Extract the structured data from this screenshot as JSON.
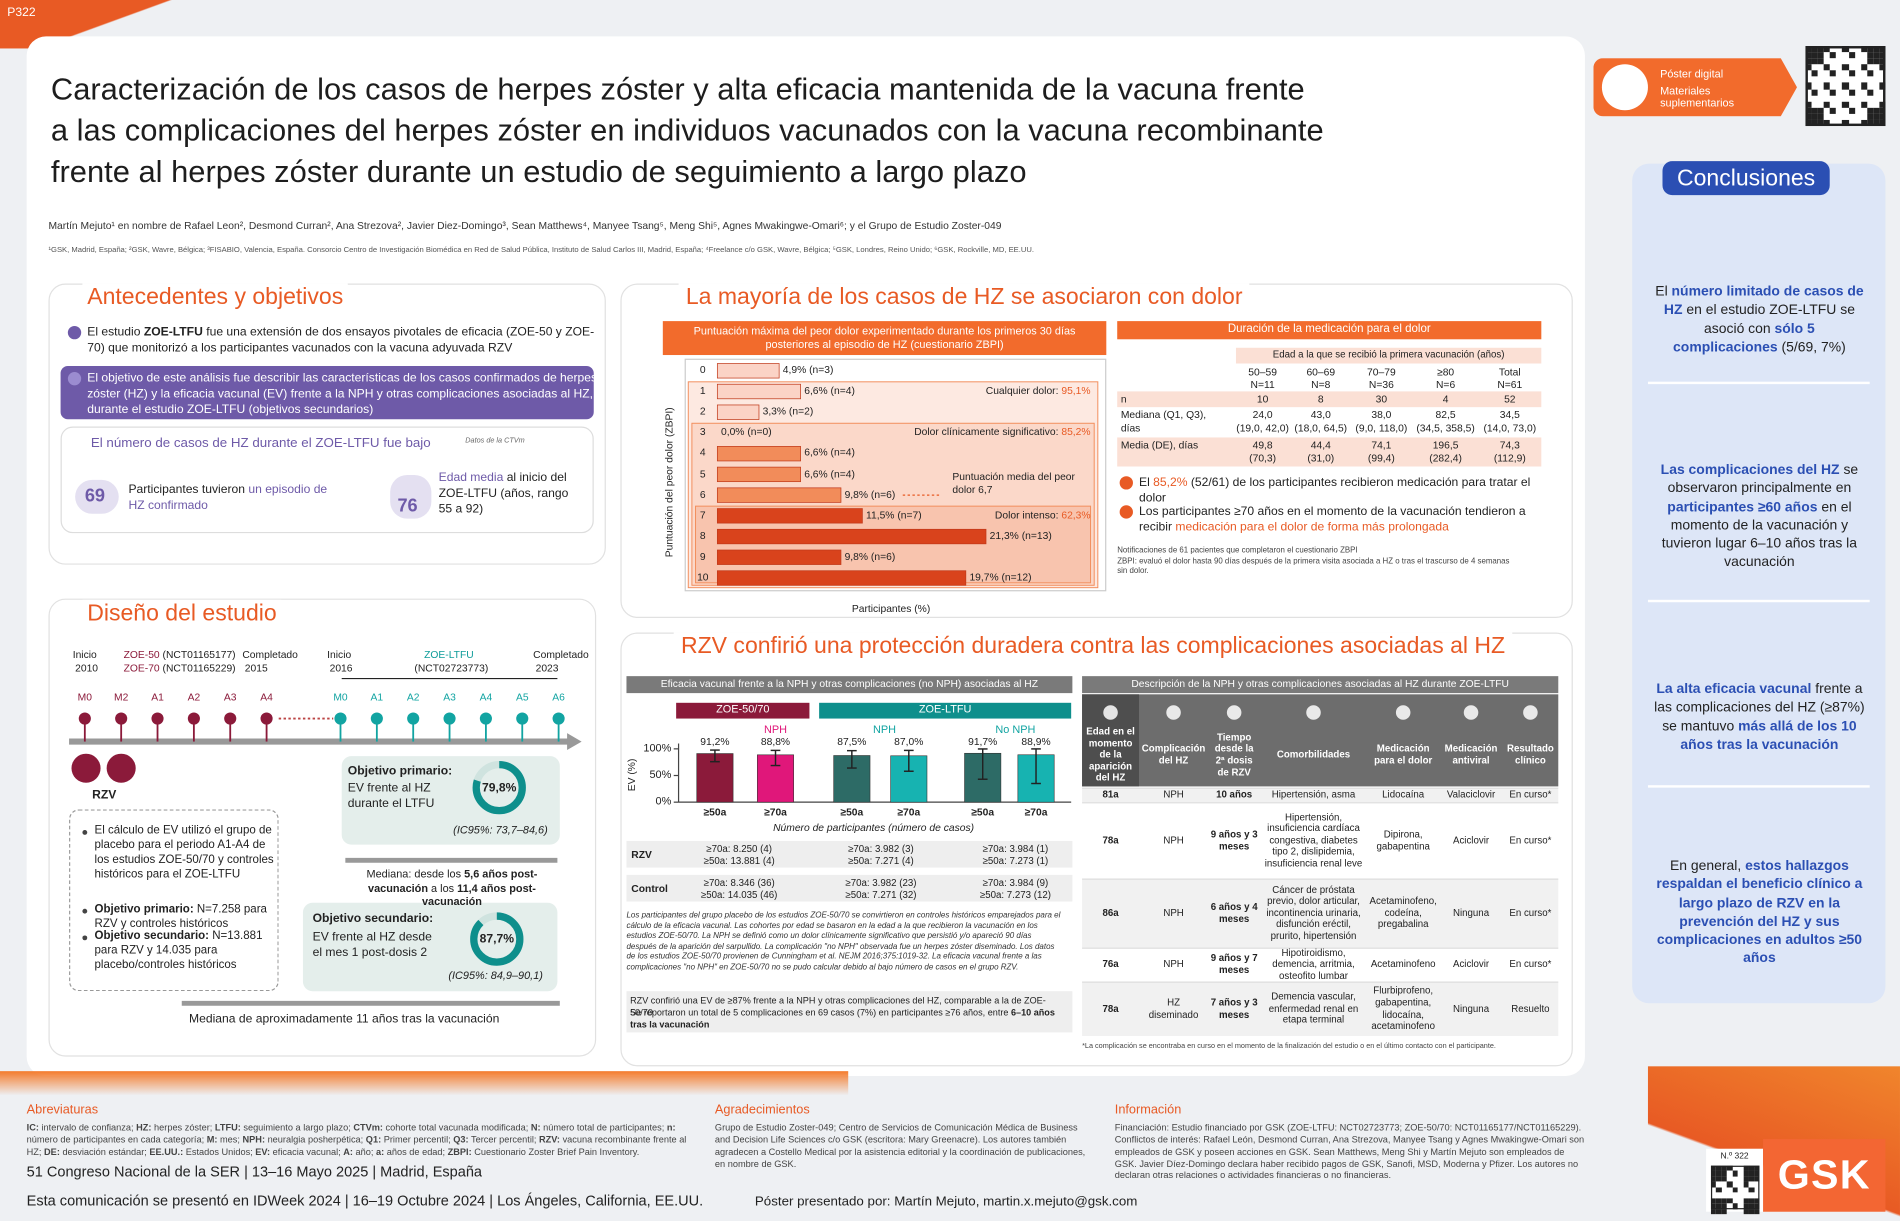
{
  "poster_id": "P322",
  "digital": {
    "label1": "Póster digital",
    "label2": "Materiales suplementarios"
  },
  "header": {
    "title_lines": [
      "Caracterización de los casos de herpes zóster y alta eficacia mantenida de la vacuna frente",
      "a las complicaciones del herpes zóster en individuos vacunados con la vacuna recombinante",
      "frente al herpes zóster durante un estudio de seguimiento a largo plazo"
    ],
    "authors": "Martín Mejuto¹ en nombre de Rafael Leon², Desmond Curran², Ana Strezova², Javier Diez-Domingo³, Sean Matthews⁴, Manyee Tsang⁵, Meng Shi⁵, Agnes Mwakingwe-Omari⁶; y el Grupo de Estudio Zoster-049",
    "affiliations": "¹GSK, Madrid, España; ²GSK, Wavre, Bélgica; ³FISABIO, Valencia, España. Consorcio Centro de Investigación Biomédica en Red de Salud Pública, Instituto de Salud Carlos III, Madrid, España; ⁴Freelance c/o GSK, Wavre, Bélgica; ⁵GSK, Londres, Reino Unido; ⁶GSK, Rockville, MD, EE.UU."
  },
  "background": {
    "title": "Antecedentes y objetivos",
    "bullet": [
      "El estudio ",
      {
        "em": "ZOE-LTFU"
      },
      " fue una extensión de dos ensayos pivotales de eficacia (ZOE-50 y ZOE-70) que monitorizó a los participantes vacunados con la vacuna adyuvada RZV"
    ],
    "objective": "El objetivo de este análisis fue describir las características de los casos confirmados de herpes zóster (HZ) y la eficacia vacunal (EV) frente a la NPH y otras complicaciones asociadas al HZ, durante el estudio ZOE-LTFU (objetivos secundarios)",
    "cases_title": "El número de casos de HZ durante el ZOE-LTFU fue bajo",
    "cases_note": "Datos de la CTVm",
    "stat1": {
      "value": 69,
      "text": [
        "Participantes tuvieron ",
        {
          "em": "un episodio de HZ confirmado"
        }
      ]
    },
    "stat2": {
      "value": 76,
      "text": [
        {
          "em": "Edad media"
        },
        " al inicio del ZOE-LTFU (años, rango 55 a 92)"
      ]
    }
  },
  "design": {
    "title": "Diseño del estudio",
    "start1": {
      "label": "Inicio",
      "year": 2010
    },
    "zoe50": [
      {
        "em": "ZOE-50"
      },
      " (NCT01165177)"
    ],
    "zoe70": [
      {
        "em": "ZOE-70"
      },
      " (NCT01165229)"
    ],
    "end1": {
      "label": "Completado",
      "year": 2015
    },
    "start2": {
      "label": "Inicio",
      "year": 2016
    },
    "ltfu": {
      "name": "ZOE-LTFU",
      "id": "(NCT02723773)"
    },
    "end2": {
      "label": "Completado",
      "year": 2023
    },
    "markers1": [
      "M0",
      "M2",
      "A1",
      "A2",
      "A3",
      "A4"
    ],
    "markers2": [
      "M0",
      "A1",
      "A2",
      "A3",
      "A4",
      "A5",
      "A6"
    ],
    "vaccine": "RZV",
    "bullets": [
      "El cálculo de EV utilizó el grupo de placebo para el periodo A1-A4 de los estudios ZOE-50/70 y controles históricos para el ZOE-LTFU",
      [
        {
          "em": "Objetivo primario:"
        },
        " N=7.258 para RZV y controles históricos"
      ],
      [
        {
          "em": "Objetivo secundario:"
        },
        " N=13.881 para RZV y 14.035 para placebo/controles históricos"
      ]
    ],
    "primary": {
      "title": "Objetivo primario:",
      "text": "EV frente al HZ durante el LTFU",
      "value": 79.8,
      "value_label": "79,8%",
      "ci": "(IC95%: 73,7–84,6)"
    },
    "median1": [
      "Mediana: desde los ",
      {
        "em": "5,6 años post-vacunación"
      },
      " a los ",
      {
        "em": "11,4 años post-vacunación"
      }
    ],
    "secondary": {
      "title": "Objetivo secundario:",
      "text": "EV frente al HZ desde el mes 1 post-dosis 2",
      "value": 87.7,
      "value_label": "87,7%",
      "ci": "(IC95%: 84,9–90,1)"
    },
    "median2": "Mediana de aproximadamente 11 años tras la vacunación"
  },
  "pain": {
    "title": "La mayoría de los casos de HZ se asociaron con dolor",
    "chart": {
      "type": "bar",
      "orientation": "horizontal",
      "title": "Puntuación máxima del peor dolor experimentado durante los primeros 30 días posteriores al episodio de HZ (cuestionario ZBPI)",
      "categories": [
        0,
        1,
        2,
        3,
        4,
        5,
        6,
        7,
        8,
        9,
        10
      ],
      "values": [
        4.9,
        6.6,
        3.3,
        0,
        6.6,
        6.6,
        9.8,
        11.5,
        21.3,
        9.8,
        19.7
      ],
      "value_labels": [
        "4,9% (n=3)",
        "6,6% (n=4)",
        "3,3% (n=2)",
        "0,0% (n=0)",
        "6,6% (n=4)",
        "6,6% (n=4)",
        "9,8% (n=6)",
        "11,5% (n=7)",
        "21,3% (n=13)",
        "9,8% (n=6)",
        "19,7% (n=12)"
      ],
      "colors": [
        "#fbd3c6",
        "#fbd3c6",
        "#fbd3c6",
        "#f28c5a",
        "#f28c5a",
        "#f28c5a",
        "#f28c5a",
        "#d9431c",
        "#d9431c",
        "#d9431c",
        "#d9431c"
      ],
      "xlim": [
        0,
        22
      ],
      "xlabel": "Participantes (%)",
      "ylabel": "Puntuación del peor dolor (ZBPI)",
      "bands": [
        [
          "Cualquier dolor: ",
          {
            "em": "95,1%"
          }
        ],
        [
          "Dolor clínicamente significativo: ",
          {
            "em": "85,2%"
          }
        ],
        [
          "Dolor intenso: ",
          {
            "em": "62,3%"
          }
        ]
      ],
      "mean_note": "Puntuación media del peor dolor 6,7"
    },
    "table": {
      "title": "Duración de la medicación para el dolor",
      "subheader": "Edad a la que se recibió la primera vacunación (años)",
      "columns": [
        {
          "range": "50–59",
          "n": "N=11"
        },
        {
          "range": "60–69",
          "n": "N=8"
        },
        {
          "range": "70–79",
          "n": "N=36"
        },
        {
          "range": "≥80",
          "n": "N=6"
        },
        {
          "range": "Total",
          "n": "N=61"
        }
      ],
      "rows": [
        {
          "label": "n",
          "cells": [
            [
              10
            ],
            [
              8
            ],
            [
              30
            ],
            [
              4
            ],
            [
              52
            ]
          ]
        },
        {
          "label": "Mediana (Q1, Q3), días",
          "cells": [
            [
              "24,0",
              "(19,0, 42,0)"
            ],
            [
              "43,0",
              "(18,0, 64,5)"
            ],
            [
              "38,0",
              "(9,0, 118,0)"
            ],
            [
              "82,5",
              "(34,5, 358,5)"
            ],
            [
              "34,5",
              "(14,0, 73,0)"
            ]
          ]
        },
        {
          "label": "Media (DE), días",
          "cells": [
            [
              "49,8",
              "(70,3)"
            ],
            [
              "44,4",
              "(31,0)"
            ],
            [
              "74,1",
              "(99,4)"
            ],
            [
              "196,5",
              "(282,4)"
            ],
            [
              "74,3",
              "(112,9)"
            ]
          ]
        }
      ]
    },
    "bullets": [
      [
        "El ",
        {
          "em": "85,2%"
        },
        " (52/61) de los participantes recibieron medicación para tratar el dolor"
      ],
      [
        "Los participantes ≥70 años en el momento de la vacunación tendieron a recibir ",
        {
          "em": "medicación para el dolor de forma más prolongada"
        }
      ]
    ],
    "footnotes": [
      "Notificaciones de 61 pacientes que completaron el cuestionario ZBPI",
      "ZBPI: evaluó el dolor hasta 90 días después de la primera visita asociada a HZ o tras el trascurso de 4 semanas sin dolor."
    ]
  },
  "protection": {
    "title": "RZV confirió una protección duradera contra las complicaciones asociadas al HZ",
    "chart": {
      "type": "bar",
      "title": "Eficacia vacunal frente a la NPH y otras complicaciones (no NPH) asociadas al HZ",
      "ylabel": "EV (%)",
      "ylim": [
        0,
        110
      ],
      "yticks": [
        {
          "value": 0,
          "label": "0%"
        },
        {
          "value": 50,
          "label": "50%"
        },
        {
          "value": 100,
          "label": "100%"
        }
      ],
      "xlabel": "Número de participantes (número de casos)",
      "row_labels": [
        "RZV",
        "Control"
      ],
      "groups": [
        {
          "name": "ZOE-50/70",
          "color": "#8b1a3a",
          "subgroups": [
            {
              "name": "NPH",
              "color": "#e0177a",
              "categories": [
                "≥50a",
                "≥70a"
              ],
              "values": [
                91.2,
                88.8
              ],
              "value_labels": [
                "91,2%",
                "88,8%"
              ],
              "ci_low": [
                75.9,
                68.7
              ],
              "ci_high": [
                97.7,
                97.1
              ],
              "colors": [
                "#8b1a3a",
                "#e0177a"
              ],
              "rzv": [
                "≥70a: 8.250 (4)",
                "≥50a: 13.881 (4)"
              ],
              "control": [
                "≥70a: 8.346 (36)",
                "≥50a: 14.035 (46)"
              ]
            }
          ]
        },
        {
          "name": "ZOE-LTFU",
          "color": "#0e8f8c",
          "subgroups": [
            {
              "name": "NPH",
              "color": "#12a4a2",
              "categories": [
                "≥50a",
                "≥70a"
              ],
              "values": [
                87.5,
                87.0
              ],
              "value_labels": [
                "87,5%",
                "87,0%"
              ],
              "ci_low": [
                64.0,
                58.0
              ],
              "ci_high": [
                96.6,
                97.1
              ],
              "colors": [
                "#2d6b66",
                "#17b3b1"
              ],
              "rzv": [
                "≥70a: 3.982 (3)",
                "≥50a: 7.271 (4)"
              ],
              "control": [
                "≥70a: 3.982 (23)",
                "≥50a: 7.271 (32)"
              ]
            },
            {
              "name": "No NPH",
              "color": "#12a4a2",
              "categories": [
                "≥50a",
                "≥70a"
              ],
              "values": [
                91.7,
                88.9
              ],
              "value_labels": [
                "91,7%",
                "88,9%"
              ],
              "ci_low": [
                43.0,
                35.0
              ],
              "ci_high": [
                99.8,
                99.9
              ],
              "colors": [
                "#2d6b66",
                "#17b3b1"
              ],
              "rzv": [
                "≥70a: 3.984 (1)",
                "≥50a: 7.273 (1)"
              ],
              "control": [
                "≥70a: 3.984 (9)",
                "≥50a: 7.273 (12)"
              ]
            }
          ]
        }
      ]
    },
    "note": "Los participantes del grupo placebo de los estudios ZOE-50/70 se convirtieron en controles históricos emparejados para el cálculo de la eficacia vacunal. Las cohortes por edad se basaron en la edad a la que recibieron la vacunación en los estudios ZOE-50/70. La NPH se definió como un dolor clínicamente significativo que persistió y/o apareció 90 días después de la aparición del sarpullido. La complicación \"no NPH\" observada fue un herpes zóster diseminado. Los datos de los estudios ZOE-50/70 provienen de Cunningham et al. NEJM 2016;375:1019-32. La eficacia vacunal frente a las complicaciones \"no NPH\" en ZOE-50/70 no se pudo calcular debido al bajo número de casos en el grupo RZV.",
    "summary1": "RZV confirió una EV de ≥87% frente a la NPH y otras complicaciones del HZ, comparable a la de ZOE-50/70",
    "summary2": [
      "Se reportaron un total de 5 complicaciones en 69 casos (7%) en participantes ≥76 años, entre ",
      {
        "em": "6–10 años tras la vacunación"
      }
    ],
    "table": {
      "title": "Descripción de la NPH y otras complicaciones asociadas al HZ durante ZOE-LTFU",
      "headers": [
        "Edad en el momento de la aparición del HZ",
        "Complicación del HZ",
        "Tiempo desde la 2ª dosis de RZV",
        "Comorbilidades",
        "Medicación para el dolor",
        "Medicación antiviral",
        "Resultado clínico"
      ],
      "rows": [
        [
          "81a",
          "NPH",
          "10 años",
          "Hipertensión, asma",
          "Lidocaína",
          "Valaciclovir",
          "En curso*"
        ],
        [
          "78a",
          "NPH",
          "9 años y 3 meses",
          "Hipertensión, insuficiencia cardíaca congestiva, diabetes tipo 2, dislipidemia, insuficiencia renal leve",
          "Dipirona, gabapentina",
          "Aciclovir",
          "En curso*"
        ],
        [
          "86a",
          "NPH",
          "6 años y 4 meses",
          "Cáncer de próstata previo, dolor articular, incontinencia urinaria, disfunción eréctil, prurito, hipertensión",
          "Acetaminofeno, codeína, pregabalina",
          "Ninguna",
          "En curso*"
        ],
        [
          "76a",
          "NPH",
          "9 años y 7 meses",
          "Hipotiroidismo, demencia, arritmia, osteofito lumbar",
          "Acetaminofeno",
          "Aciclovir",
          "En curso*"
        ],
        [
          "78a",
          "HZ diseminado",
          "7 años y 3 meses",
          "Demencia vascular, enfermedad renal en etapa terminal",
          "Flurbiprofeno, gabapentina, lidocaína, acetaminofeno",
          "Ninguna",
          "Resuelto"
        ]
      ],
      "footnote": "*La complicación se encontraba en curso en el momento de la finalización del estudio o en el último contacto con el participante."
    }
  },
  "conclusions": {
    "title": "Conclusiones",
    "items": [
      [
        "El ",
        {
          "em": "número limitado de casos de HZ"
        },
        " en el estudio ZOE-LTFU se asoció con ",
        {
          "em": "sólo 5 complicaciones"
        },
        " (5/69, 7%)"
      ],
      [
        {
          "em": "Las complicaciones del HZ"
        },
        " se observaron principalmente en ",
        {
          "em": "participantes ≥60 años"
        },
        " en el momento de la vacunación y tuvieron lugar 6–10 años tras la vacunación"
      ],
      [
        {
          "em": "La alta eficacia vacunal"
        },
        " frente a las complicaciones del HZ (≥87%) se mantuvo ",
        {
          "em": "más allá de los 10 años tras la vacunación"
        }
      ],
      [
        "En general, ",
        {
          "em": "estos hallazgos respaldan el beneficio clínico a largo plazo de RZV en la prevención del HZ y sus complicaciones en adultos ≥50 años"
        }
      ]
    ]
  },
  "footer": {
    "abbr_title": "Abreviaturas",
    "abbr": [
      {
        "em": "IC:"
      },
      " intervalo de confianza; ",
      {
        "em": "HZ:"
      },
      " herpes zóster; ",
      {
        "em": "LTFU:"
      },
      " seguimiento a largo plazo; ",
      {
        "em": "CTVm:"
      },
      " cohorte total vacunada modificada; ",
      {
        "em": "N:"
      },
      " número total de participantes; ",
      {
        "em": "n:"
      },
      " número de participantes en cada categoría; ",
      {
        "em": "M:"
      },
      " mes; ",
      {
        "em": "NPH:"
      },
      " neuralgia posherpética; ",
      {
        "em": "Q1:"
      },
      " Primer percentil; ",
      {
        "em": "Q3:"
      },
      " Tercer percentil; ",
      {
        "em": "RZV:"
      },
      " vacuna recombinante frente al HZ; ",
      {
        "em": "DE:"
      },
      " desviación estándar; ",
      {
        "em": "EE.UU.:"
      },
      " Estados Unidos; ",
      {
        "em": "EV:"
      },
      " eficacia vacunal; ",
      {
        "em": "A:"
      },
      " año; ",
      {
        "em": "a:"
      },
      " años de edad; ",
      {
        "em": "ZBPI:"
      },
      " Cuestionario Zoster Brief Pain Inventory."
    ],
    "ack_title": "Agradecimientos",
    "ack": "Grupo de Estudio Zoster-049; Centro de Servicios de Comunicación Médica de Business and Decision Life Sciences c/o GSK (escritora: Mary Greenacre). Los autores también agradecen a Costello Medical por la asistencia editorial y la coordinación de publicaciones, en nombre de GSK.",
    "info_title": "Información",
    "info": "Financiación: Estudio financiado por GSK (ZOE-LTFU: NCT02723773; ZOE-50/70: NCT01165177/NCT01165229). Conflictos de interés: Rafael León, Desmond Curran, Ana Strezova, Manyee Tsang y Agnes Mwakingwe-Omari son empleados de GSK y poseen acciones en GSK. Sean Matthews, Meng Shi y Martín Mejuto son empleados de GSK. Javier Díez-Domingo declara haber recibido pagos de GSK, Sanofi, MSD, Moderna y Pfizer. Los autores no declaran otras relaciones o actividades financieras o no financieras.",
    "congress": "51 Congreso Nacional de la SER | 13–16 Mayo 2025 | Madrid, España",
    "presented": "Esta comunicación se presentó en IDWeek 2024 | 16–19 Octubre 2024 | Los Ángeles, California, EE.UU.",
    "presenter": "Póster presentado por: Martín Mejuto, martin.x.mejuto@gsk.com",
    "number": "N.º 322",
    "brand": "GSK"
  }
}
